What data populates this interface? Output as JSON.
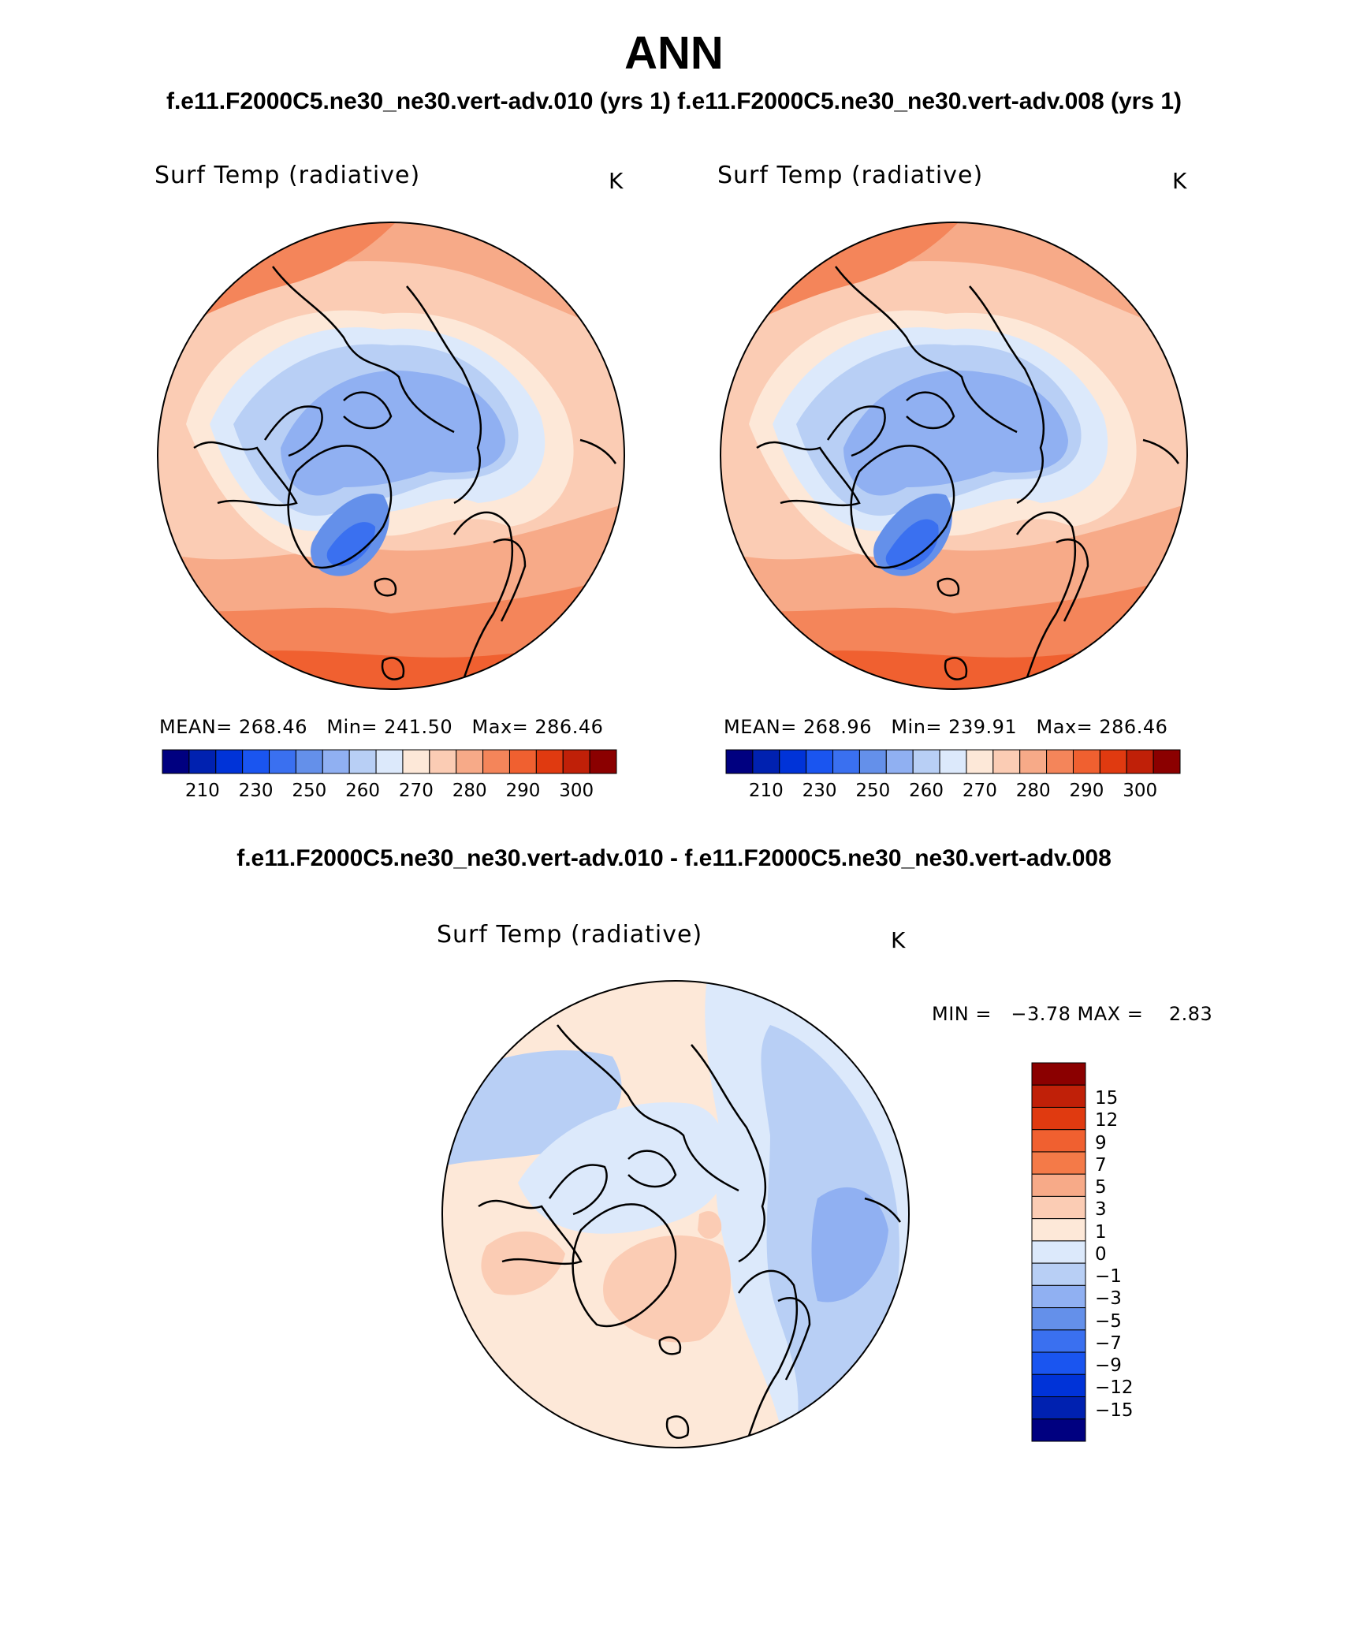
{
  "header": {
    "title": "ANN",
    "subtitle": "f.e11.F2000C5.ne30_ne30.vert-adv.010 (yrs 1) f.e11.F2000C5.ne30_ne30.vert-adv.008 (yrs 1)"
  },
  "panels": [
    {
      "field_title": "Surf Temp (radiative)",
      "units": "K",
      "stats": "MEAN= 268.46   Min= 241.50   Max= 286.46"
    },
    {
      "field_title": "Surf Temp (radiative)",
      "units": "K",
      "stats": "MEAN= 268.96   Min= 239.91   Max= 286.46"
    }
  ],
  "abs_colorbar": {
    "colors": [
      "#000080",
      "#0021b0",
      "#0033d8",
      "#1a55f0",
      "#3a70f0",
      "#6490ea",
      "#90b0f2",
      "#b8cff5",
      "#dce9fb",
      "#fde8d8",
      "#fbccb4",
      "#f7aa88",
      "#f4855a",
      "#f06030",
      "#e03a10",
      "#c02008",
      "#8b0000"
    ],
    "labels": [
      "210",
      "230",
      "250",
      "260",
      "270",
      "280",
      "290",
      "300"
    ]
  },
  "difference": {
    "title": "f.e11.F2000C5.ne30_ne30.vert-adv.010 - f.e11.F2000C5.ne30_ne30.vert-adv.008",
    "field_title": "Surf Temp (radiative)",
    "units": "K",
    "stats": "MIN =   −3.78 MAX =    2.83",
    "colorbar": {
      "colors": [
        "#8b0000",
        "#c02008",
        "#e03a10",
        "#f06030",
        "#f47a48",
        "#f7aa88",
        "#fbccb4",
        "#fde8d8",
        "#dce9fb",
        "#b8cff5",
        "#90b0f2",
        "#6490ea",
        "#3a70f0",
        "#1a55f0",
        "#0033d8",
        "#0021b0",
        "#000080"
      ],
      "labels": [
        "15",
        "12",
        "9",
        "7",
        "5",
        "3",
        "1",
        "0",
        "−1",
        "−3",
        "−5",
        "−7",
        "−9",
        "−12",
        "−15"
      ]
    }
  }
}
